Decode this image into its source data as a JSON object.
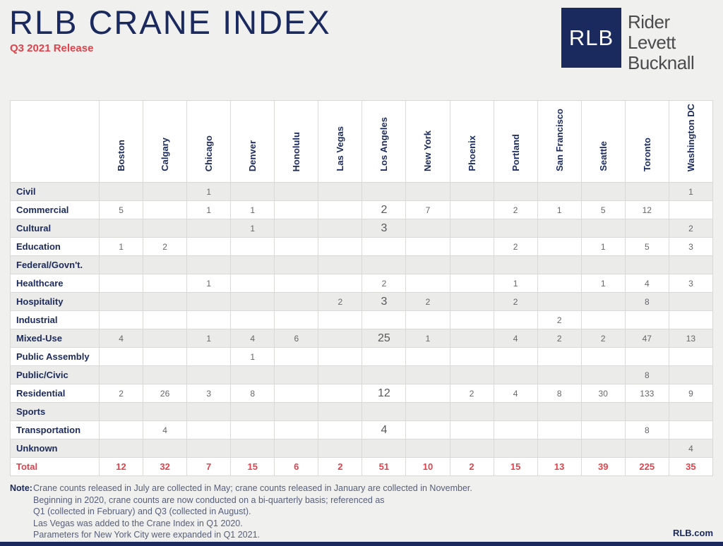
{
  "header": {
    "title": "RLB CRANE INDEX",
    "subtitle": "Q3 2021 Release"
  },
  "logo": {
    "square_text": "RLB",
    "name_lines": [
      "Rider",
      "Levett",
      "Bucknall"
    ]
  },
  "table": {
    "columns": [
      "Boston",
      "Calgary",
      "Chicago",
      "Denver",
      "Honolulu",
      "Las Vegas",
      "Los Angeles",
      "New York",
      "Phoenix",
      "Portland",
      "San Francisco",
      "Seattle",
      "Toronto",
      "Washington DC"
    ],
    "rows": [
      {
        "label": "Civil",
        "values": [
          "",
          "",
          "1",
          "",
          "",
          "",
          "",
          "",
          "",
          "",
          "",
          "",
          "",
          "1"
        ]
      },
      {
        "label": "Commercial",
        "values": [
          "5",
          "",
          "1",
          "1",
          "",
          "",
          "2",
          "7",
          "",
          "2",
          "1",
          "5",
          "12",
          ""
        ]
      },
      {
        "label": "Cultural",
        "values": [
          "",
          "",
          "",
          "1",
          "",
          "",
          "3",
          "",
          "",
          "",
          "",
          "",
          "",
          "2"
        ]
      },
      {
        "label": "Education",
        "values": [
          "1",
          "2",
          "",
          "",
          "",
          "",
          "",
          "",
          "",
          "2",
          "",
          "1",
          "5",
          "3"
        ]
      },
      {
        "label": "Federal/Govn't.",
        "values": [
          "",
          "",
          "",
          "",
          "",
          "",
          "",
          "",
          "",
          "",
          "",
          "",
          "",
          ""
        ]
      },
      {
        "label": "Healthcare",
        "values": [
          "",
          "",
          "1",
          "",
          "",
          "",
          "2",
          "",
          "",
          "1",
          "",
          "1",
          "4",
          "3"
        ]
      },
      {
        "label": "Hospitality",
        "values": [
          "",
          "",
          "",
          "",
          "",
          "2",
          "3",
          "2",
          "",
          "2",
          "",
          "",
          "8",
          ""
        ]
      },
      {
        "label": "Industrial",
        "values": [
          "",
          "",
          "",
          "",
          "",
          "",
          "",
          "",
          "",
          "",
          "2",
          "",
          "",
          ""
        ]
      },
      {
        "label": "Mixed-Use",
        "values": [
          "4",
          "",
          "1",
          "4",
          "6",
          "",
          "25",
          "1",
          "",
          "4",
          "2",
          "2",
          "47",
          "13"
        ]
      },
      {
        "label": "Public Assembly",
        "values": [
          "",
          "",
          "",
          "1",
          "",
          "",
          "",
          "",
          "",
          "",
          "",
          "",
          "",
          ""
        ]
      },
      {
        "label": "Public/Civic",
        "values": [
          "",
          "",
          "",
          "",
          "",
          "",
          "",
          "",
          "",
          "",
          "",
          "",
          "8",
          ""
        ]
      },
      {
        "label": "Residential",
        "values": [
          "2",
          "26",
          "3",
          "8",
          "",
          "",
          "12",
          "",
          "2",
          "4",
          "8",
          "30",
          "133",
          "9"
        ]
      },
      {
        "label": "Sports",
        "values": [
          "",
          "",
          "",
          "",
          "",
          "",
          "",
          "",
          "",
          "",
          "",
          "",
          "",
          ""
        ]
      },
      {
        "label": "Transportation",
        "values": [
          "",
          "4",
          "",
          "",
          "",
          "",
          "4",
          "",
          "",
          "",
          "",
          "",
          "8",
          ""
        ]
      },
      {
        "label": "Unknown",
        "values": [
          "",
          "",
          "",
          "",
          "",
          "",
          "",
          "",
          "",
          "",
          "",
          "",
          "",
          "4"
        ]
      },
      {
        "label": "Total",
        "values": [
          "12",
          "32",
          "7",
          "15",
          "6",
          "2",
          "51",
          "10",
          "2",
          "15",
          "13",
          "39",
          "225",
          "35"
        ],
        "is_total": true
      }
    ],
    "large_cells": [
      [
        1,
        6
      ],
      [
        2,
        6
      ],
      [
        6,
        6
      ],
      [
        8,
        6
      ],
      [
        11,
        6
      ],
      [
        13,
        6
      ]
    ]
  },
  "note": {
    "label": "Note:",
    "lines": [
      "Crane counts released in July are collected in May; crane counts released in January are collected in November.",
      "Beginning in 2020, crane counts are now conducted on a bi-quarterly basis; referenced as",
      "Q1 (collected in February) and Q3 (collected in August).",
      "Las Vegas was added to the Crane Index in Q1 2020.",
      "Parameters for New York City were expanded in Q1 2021."
    ]
  },
  "footer": {
    "site": "RLB.com"
  },
  "colors": {
    "navy": "#1b2a5e",
    "red": "#e0434b",
    "valgray": "#65666a",
    "notegray": "#565f7b",
    "bg": "#f0f0ee",
    "stripe": "#ebebe9",
    "grid": "#d9d9d7"
  }
}
